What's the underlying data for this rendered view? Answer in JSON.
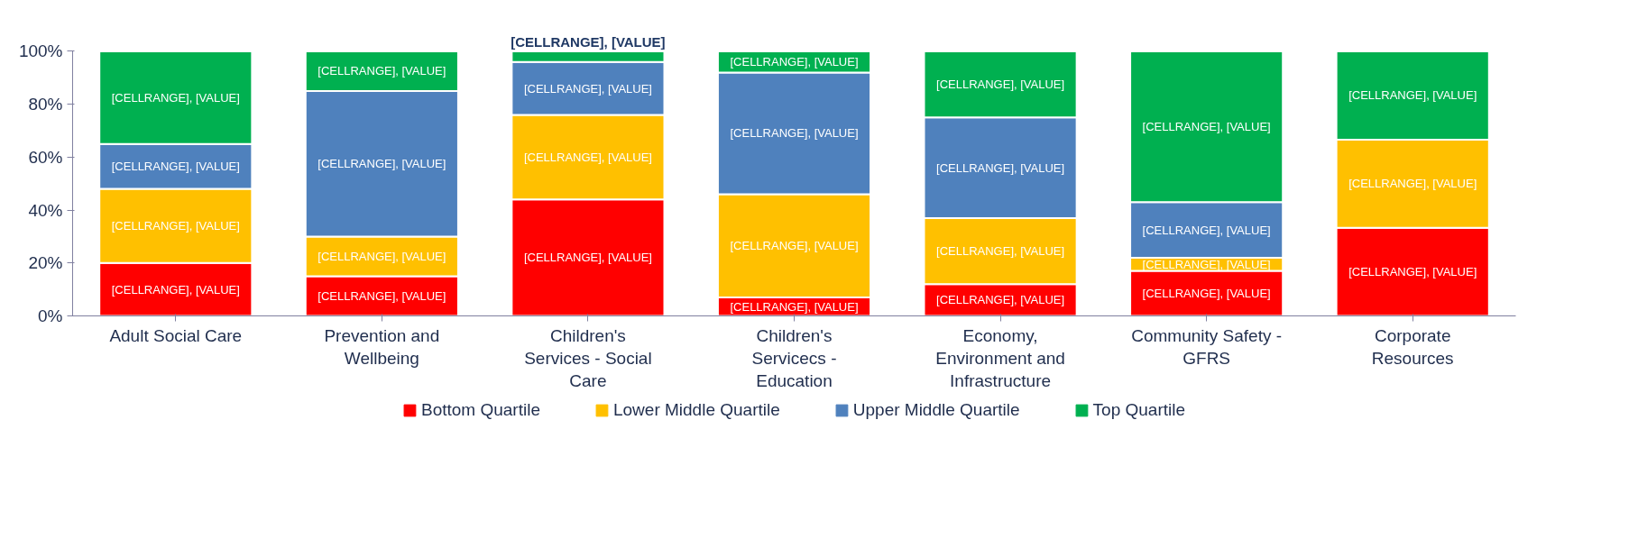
{
  "chart_data": {
    "type": "bar",
    "stacked": true,
    "categories": [
      "Adult Social Care",
      "Prevention and Wellbeing",
      "Children's Services - Social Care",
      "Children's Servicecs - Education",
      "Economy, Environment and Infrastructure",
      "Community Safety - GFRS",
      "Corporate Resources"
    ],
    "series": [
      {
        "name": "Bottom Quartile",
        "color": "#ff0000",
        "values": [
          20,
          15,
          44,
          7,
          12,
          17,
          33.3
        ],
        "value_labels": [
          "[CELLRANGE], [VALUE]",
          "[CELLRANGE], [VALUE]",
          "[CELLRANGE], [VALUE]",
          "[CELLRANGE], [VALUE]",
          "[CELLRANGE], [VALUE]",
          "[CELLRANGE], [VALUE]",
          "[CELLRANGE], [VALUE]"
        ]
      },
      {
        "name": "Lower Middle Quartile",
        "color": "#ffc000",
        "values": [
          28,
          15,
          32,
          39,
          25,
          5,
          33.3
        ],
        "value_labels": [
          "[CELLRANGE], [VALUE]",
          "[CELLRANGE], [VALUE]",
          "[CELLRANGE], [VALUE]",
          "[CELLRANGE], [VALUE]",
          "[CELLRANGE], [VALUE]",
          "[CELLRANGE], [VALUE]",
          "[CELLRANGE], [VALUE]"
        ]
      },
      {
        "name": "Upper Middle Quartile",
        "color": "#4f81bd",
        "values": [
          17,
          55,
          20,
          46,
          38,
          21,
          0
        ],
        "value_labels": [
          "[CELLRANGE], [VALUE]",
          "[CELLRANGE], [VALUE]",
          "[CELLRANGE], [VALUE]",
          "[CELLRANGE], [VALUE]",
          "[CELLRANGE], [VALUE]",
          "[CELLRANGE], [VALUE]",
          null
        ]
      },
      {
        "name": "Top Quartile",
        "color": "#00b050",
        "values": [
          35,
          15,
          4,
          8,
          25,
          57,
          33.4
        ],
        "value_labels": [
          "[CELLRANGE], [VALUE]",
          "[CELLRANGE], [VALUE]",
          "[CELLRANGE], [VALUE]",
          "[CELLRANGE], [VALUE]",
          "[CELLRANGE], [VALUE]",
          "[CELLRANGE], [VALUE]",
          "[CELLRANGE], [VALUE]"
        ]
      }
    ],
    "ylim": [
      0,
      100
    ],
    "yticks": [
      {
        "value": 0,
        "label": "0%"
      },
      {
        "value": 20,
        "label": "20%"
      },
      {
        "value": 40,
        "label": "40%"
      },
      {
        "value": 60,
        "label": "60%"
      },
      {
        "value": 80,
        "label": "80%"
      },
      {
        "value": 100,
        "label": "100%"
      }
    ],
    "grid": false,
    "legend": "bottom"
  }
}
